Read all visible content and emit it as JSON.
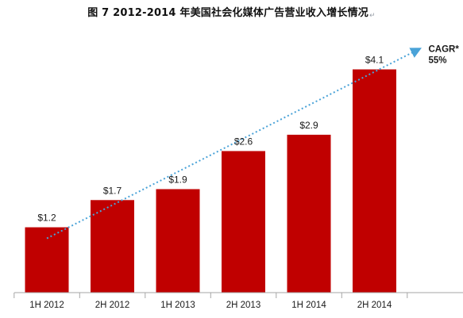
{
  "page": {
    "title_main": "图 7   2012-2014 年美国社会化媒体广告营业收入增长情况",
    "title_mark": "↵"
  },
  "chart_data": {
    "type": "bar",
    "title": "图 7   2012-2014 年美国社会化媒体广告营业收入增长情况",
    "categories": [
      "1H 2012",
      "2H 2012",
      "1H 2013",
      "2H 2013",
      "1H 2014",
      "2H 2014"
    ],
    "values": [
      1.2,
      1.7,
      1.9,
      2.6,
      2.9,
      4.1
    ],
    "data_labels": [
      "$1.2",
      "$1.7",
      "$1.9",
      "$2.6",
      "$2.9",
      "$4.1"
    ],
    "ylim": [
      0,
      4.5
    ],
    "grid": false,
    "colors": {
      "bar": "#c00000",
      "trend": "#4aa3d8",
      "axis": "#a6a6a6"
    },
    "annotation": {
      "label_line1": "CAGR*",
      "label_line2": "55%"
    },
    "trend": {
      "from_category": "1H 2012",
      "to_category": "2H 2014"
    }
  }
}
